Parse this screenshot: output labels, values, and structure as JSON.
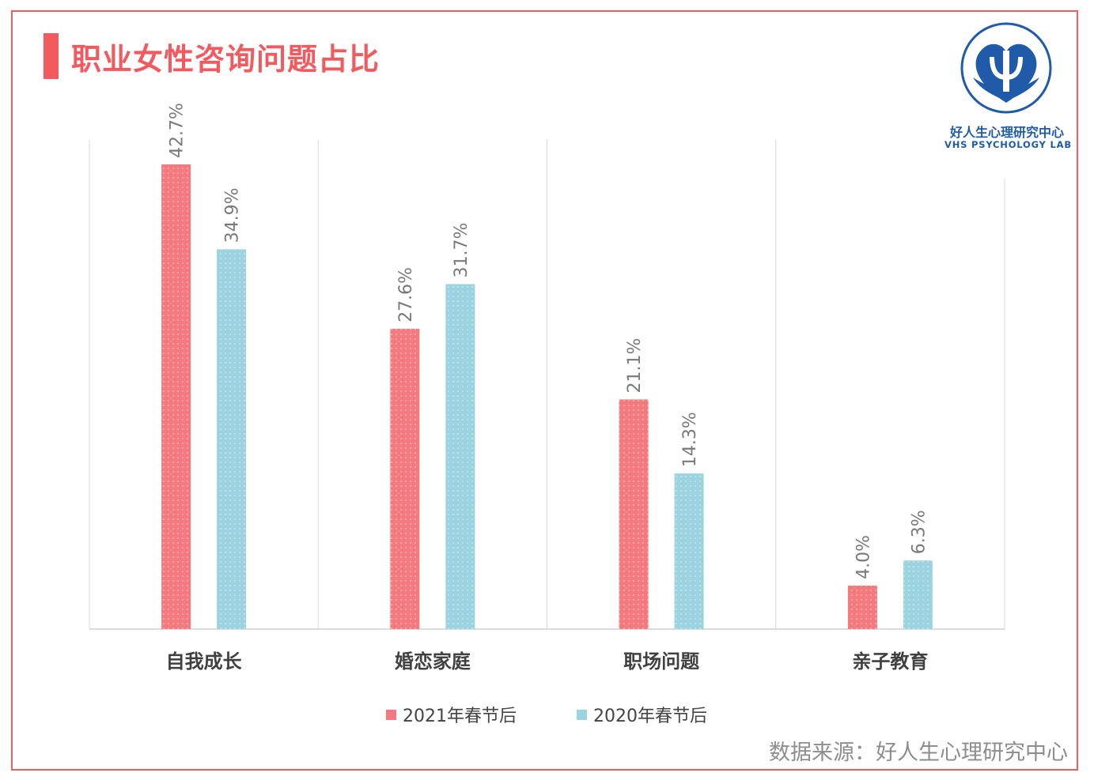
{
  "title": "职业女性咨询问题占比",
  "logo": {
    "cn": "好人生心理研究中心",
    "en": "VHS PSYCHOLOGY LAB"
  },
  "source": "数据来源：好人生心理研究中心",
  "colors": {
    "series2021": "#f47a7d",
    "series2020": "#9bd3e0",
    "accent": "#f15a5f",
    "logo": "#1f5ba8"
  },
  "chart_data": {
    "type": "bar",
    "categories": [
      "自我成长",
      "婚恋家庭",
      "职场问题",
      "亲子教育"
    ],
    "series": [
      {
        "name": "2021年春节后",
        "values": [
          42.7,
          27.6,
          21.1,
          4.0
        ],
        "labels": [
          "42.7%",
          "27.6%",
          "21.1%",
          "4.0%"
        ]
      },
      {
        "name": "2020年春节后",
        "values": [
          34.9,
          31.7,
          14.3,
          6.3
        ],
        "labels": [
          "34.9%",
          "31.7%",
          "14.3%",
          "6.3%"
        ]
      }
    ],
    "ylim": [
      0,
      45
    ],
    "grid": "vertical category separators",
    "legend": "bottom-center"
  }
}
